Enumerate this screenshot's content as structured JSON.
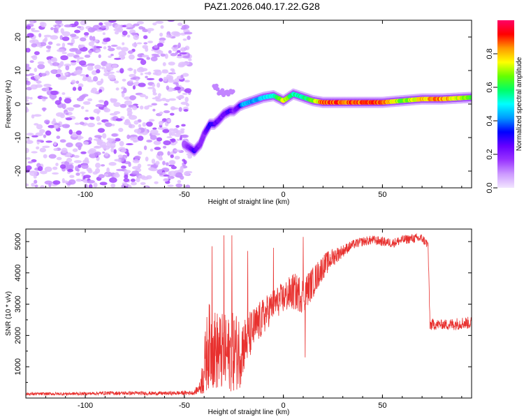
{
  "title": "PAZ1.2026.040.17.22.G28",
  "chart_data": [
    {
      "type": "heatmap",
      "name": "spectrogram",
      "xlabel": "Height of straight line (km)",
      "ylabel": "Frequency (Hz)",
      "xlim": [
        -130,
        95
      ],
      "ylim": [
        -25,
        25
      ],
      "xticks": [
        -100,
        -50,
        0,
        50
      ],
      "yticks": [
        -20,
        -10,
        0,
        10,
        20
      ],
      "colorbar": {
        "label": "Normalized spectral amplitude",
        "range": [
          0,
          1
        ],
        "ticks": [
          0.0,
          0.2,
          0.4,
          0.6,
          0.8
        ],
        "colors": [
          "#f2e6ff",
          "#cc99ff",
          "#9933ff",
          "#6600ff",
          "#0000ff",
          "#0099ff",
          "#00ffff",
          "#00ff66",
          "#66ff00",
          "#ffff00",
          "#ff9900",
          "#ff0000",
          "#ff0066"
        ]
      },
      "noise_region": {
        "x_range": [
          -130,
          -47
        ],
        "y_range": [
          -25,
          25
        ],
        "typical_amplitude": 0.05
      },
      "ridge": {
        "x": [
          -50,
          -45,
          -42,
          -40,
          -37,
          -35,
          -33,
          -30,
          -27,
          -25,
          -22,
          -20,
          -15,
          -10,
          -5,
          0,
          5,
          10,
          15,
          20,
          30,
          40,
          50,
          60,
          70,
          80,
          95
        ],
        "freq": [
          -12,
          -14,
          -12,
          -9,
          -6,
          -6,
          -5,
          -3,
          -2,
          -2,
          -0.5,
          0,
          1,
          2,
          2.5,
          1,
          3,
          2,
          1,
          0.5,
          0.5,
          0.5,
          0.5,
          1,
          1.5,
          1.5,
          2
        ],
        "amplitude": [
          0.15,
          0.3,
          0.2,
          0.2,
          0.35,
          0.3,
          0.25,
          0.25,
          0.3,
          0.2,
          0.3,
          0.5,
          0.45,
          0.5,
          0.55,
          0.8,
          0.6,
          0.6,
          0.7,
          0.95,
          0.95,
          0.95,
          0.95,
          0.7,
          0.85,
          0.9,
          0.7
        ]
      },
      "secondary_ridge": {
        "x": [
          -35,
          -30,
          -25
        ],
        "freq": [
          5,
          3,
          3
        ],
        "amplitude": 0.1
      }
    },
    {
      "type": "line",
      "name": "snr",
      "xlabel": "Height of straight line (km)",
      "ylabel": "SNR (10 * v/v)",
      "xlim": [
        -130,
        95
      ],
      "ylim": [
        0,
        5400
      ],
      "xticks": [
        -100,
        -50,
        0,
        50
      ],
      "yticks": [
        1000,
        2000,
        3000,
        4000,
        5000
      ],
      "color": "#e8312f",
      "envelope": {
        "x": [
          -130,
          -100,
          -90,
          -60,
          -45,
          -42,
          -40,
          -38,
          -36,
          -33,
          -30,
          -27,
          -25,
          -22,
          -20,
          -15,
          -10,
          -5,
          0,
          5,
          10,
          15,
          20,
          25,
          30,
          35,
          40,
          45,
          50,
          55,
          60,
          65,
          70,
          73,
          74,
          80,
          85,
          90,
          95
        ],
        "mean": [
          130,
          140,
          160,
          150,
          170,
          350,
          900,
          1700,
          1600,
          1500,
          1400,
          1400,
          1500,
          1500,
          1700,
          2200,
          2600,
          3000,
          3200,
          3400,
          3300,
          3700,
          4200,
          4500,
          4700,
          4900,
          5000,
          5050,
          5000,
          4950,
          5050,
          5100,
          5100,
          4900,
          2350,
          2350,
          2350,
          2400,
          2400
        ],
        "spread": [
          50,
          50,
          60,
          60,
          70,
          200,
          900,
          1400,
          1300,
          1300,
          1300,
          1200,
          1300,
          1200,
          900,
          700,
          600,
          500,
          500,
          600,
          600,
          500,
          400,
          300,
          200,
          150,
          150,
          150,
          150,
          150,
          150,
          150,
          150,
          150,
          200,
          150,
          200,
          200,
          200
        ]
      },
      "spikes": [
        {
          "x": -36,
          "y": 4850
        },
        {
          "x": -30,
          "y": 5200
        },
        {
          "x": -26,
          "y": 5200
        },
        {
          "x": -18,
          "y": 4700
        },
        {
          "x": -5,
          "y": 4800
        },
        {
          "x": 10,
          "y": 5150
        },
        {
          "x": 11,
          "y": 1300
        }
      ]
    }
  ]
}
